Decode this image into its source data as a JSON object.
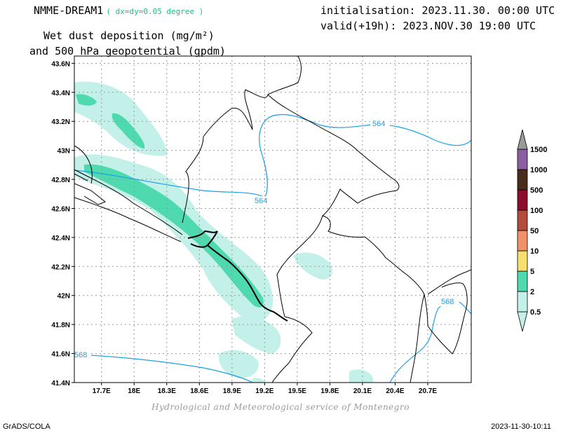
{
  "header": {
    "model": "NMME-DREAM1",
    "resolution": "( dx=dy=0.05 degree )",
    "title_line1": "Wet dust deposition (mg/m²)",
    "title_line2": "and 500 hPa geopotential (gpdm)",
    "initialisation": "initialisation: 2023.11.30. 00:00 UTC",
    "valid": "valid(+19h): 2023.NOV.30 19:00 UTC"
  },
  "footer": {
    "credit": "Hydrological and Meteorological service of Montenegro",
    "software": "GrADS/COLA",
    "timestamp": "2023-11-30-10:11"
  },
  "map": {
    "lon_range": [
      17.45,
      21.1
    ],
    "lat_range": [
      41.4,
      43.65
    ],
    "lon_ticks": [
      17.7,
      18.0,
      18.3,
      18.6,
      18.9,
      19.2,
      19.5,
      19.8,
      20.1,
      20.4,
      20.7
    ],
    "lon_tick_labels": [
      "17.7E",
      "18E",
      "18.3E",
      "18.6E",
      "18.9E",
      "19.2E",
      "19.5E",
      "19.8E",
      "20.1E",
      "20.4E",
      "20.7E"
    ],
    "lat_ticks": [
      41.4,
      41.6,
      41.8,
      42.0,
      42.2,
      42.4,
      42.6,
      42.8,
      43.0,
      43.2,
      43.4,
      43.6
    ],
    "lat_tick_labels": [
      "41.4N",
      "41.6N",
      "41.8N",
      "42N",
      "42.2N",
      "42.4N",
      "42.6N",
      "42.8N",
      "43N",
      "43.2N",
      "43.4N",
      "43.6N"
    ],
    "grid": true,
    "contour_labels": [
      "564",
      "564",
      "568",
      "568"
    ],
    "contour_color": "#1aa0e6",
    "deposition_colors": {
      "light": "#c4f0ea",
      "medium": "#4ed9ae"
    }
  },
  "colorbar": {
    "levels": [
      "0.5",
      "2",
      "5",
      "10",
      "50",
      "100",
      "500",
      "1000",
      "1500"
    ],
    "colors": [
      "#c4f0ea",
      "#4ed9ae",
      "#f5e070",
      "#f0916a",
      "#b34c3c",
      "#8c0d2c",
      "#4a2c1a",
      "#8a5ea0",
      "#9a9a9a"
    ]
  }
}
